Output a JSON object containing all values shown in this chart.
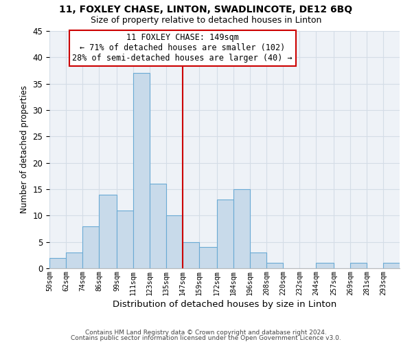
{
  "title": "11, FOXLEY CHASE, LINTON, SWADLINCOTE, DE12 6BQ",
  "subtitle": "Size of property relative to detached houses in Linton",
  "xlabel": "Distribution of detached houses by size in Linton",
  "ylabel": "Number of detached properties",
  "bin_labels": [
    "50sqm",
    "62sqm",
    "74sqm",
    "86sqm",
    "99sqm",
    "111sqm",
    "123sqm",
    "135sqm",
    "147sqm",
    "159sqm",
    "172sqm",
    "184sqm",
    "196sqm",
    "208sqm",
    "220sqm",
    "232sqm",
    "244sqm",
    "257sqm",
    "269sqm",
    "281sqm",
    "293sqm"
  ],
  "bin_edges": [
    50,
    62,
    74,
    86,
    99,
    111,
    123,
    135,
    147,
    159,
    172,
    184,
    196,
    208,
    220,
    232,
    244,
    257,
    269,
    281,
    293,
    305
  ],
  "bar_heights": [
    2,
    3,
    8,
    14,
    11,
    37,
    16,
    10,
    5,
    4,
    13,
    15,
    3,
    1,
    0,
    0,
    1,
    0,
    1,
    0,
    1
  ],
  "bar_color": "#c8daea",
  "bar_edgecolor": "#6aaad4",
  "grid_color": "#d4dde6",
  "vline_x": 147,
  "vline_color": "#cc0000",
  "annotation_title": "11 FOXLEY CHASE: 149sqm",
  "annotation_line1": "← 71% of detached houses are smaller (102)",
  "annotation_line2": "28% of semi-detached houses are larger (40) →",
  "annotation_box_edgecolor": "#cc0000",
  "ylim": [
    0,
    45
  ],
  "yticks": [
    0,
    5,
    10,
    15,
    20,
    25,
    30,
    35,
    40,
    45
  ],
  "footer1": "Contains HM Land Registry data © Crown copyright and database right 2024.",
  "footer2": "Contains public sector information licensed under the Open Government Licence v3.0.",
  "bg_color": "#ffffff",
  "plot_bg_color": "#eef2f7"
}
